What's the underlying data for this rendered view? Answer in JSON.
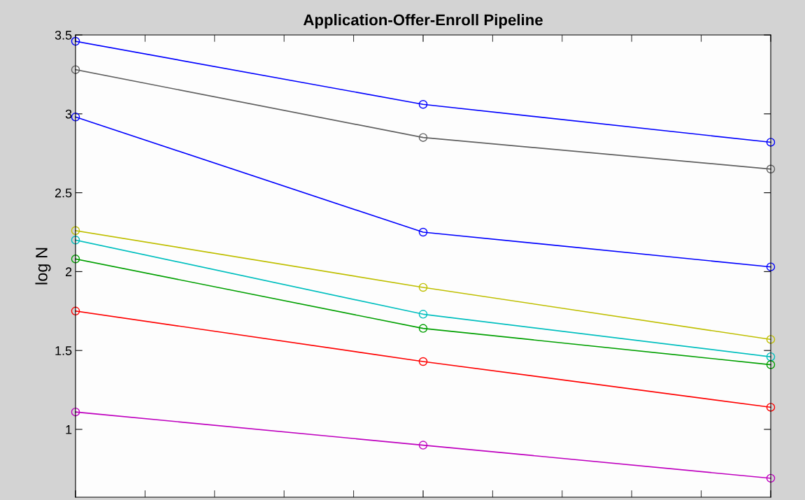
{
  "chart_data": {
    "type": "line",
    "title": "Application-Offer-Enroll Pipeline",
    "ylabel": "log N",
    "categories": [
      null,
      null,
      null
    ],
    "series": [
      {
        "color": "#0000ff",
        "values": [
          3.46,
          3.06,
          2.82
        ]
      },
      {
        "color": "#606060",
        "values": [
          3.28,
          2.85,
          2.65
        ]
      },
      {
        "color": "#0000ff",
        "values": [
          2.98,
          2.25,
          2.03
        ]
      },
      {
        "color": "#bfbf00",
        "values": [
          2.26,
          1.9,
          1.57
        ]
      },
      {
        "color": "#00bfbf",
        "values": [
          2.2,
          1.73,
          1.46
        ]
      },
      {
        "color": "#00a000",
        "values": [
          2.08,
          1.64,
          1.41
        ]
      },
      {
        "color": "#ff0000",
        "values": [
          1.75,
          1.43,
          1.14
        ]
      },
      {
        "color": "#bf00bf",
        "values": [
          1.11,
          0.9,
          0.69
        ]
      }
    ],
    "ylim": [
      0.57,
      3.5
    ],
    "yticks": [
      1,
      1.5,
      2,
      2.5,
      3,
      3.5
    ],
    "tick_labels": "y",
    "marker": "circle",
    "line_style": "solid",
    "grid": false,
    "legend": false
  }
}
